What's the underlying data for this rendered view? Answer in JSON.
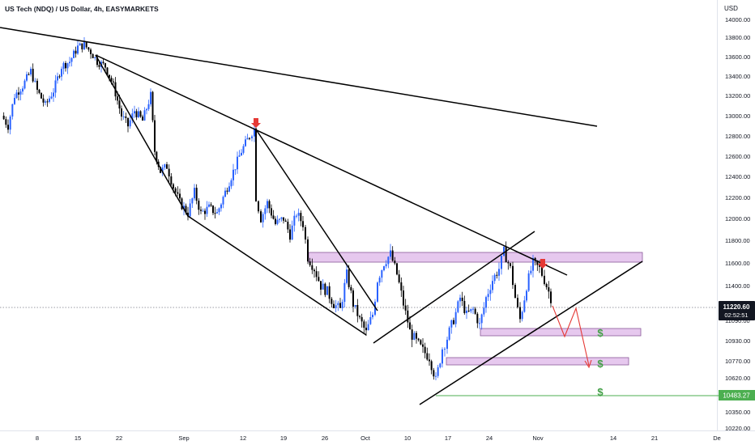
{
  "header": {
    "title": "US Tech (NDQ) / US Dollar, 4h, EASYMARKETS"
  },
  "price_axis": {
    "currency": "USD",
    "current_price": "11220.60",
    "countdown": "02:52:51",
    "support_level": "10483.27"
  },
  "colors": {
    "up_candle": "#2962ff",
    "down_candle": "#000000",
    "zone_fill": "#e6c8ee",
    "zone_stroke": "#8a5a9a",
    "signal_arrow": "#e53935",
    "dollar": "#43a047",
    "support_line": "#4caf50",
    "trend_line": "#000000"
  },
  "chart_data": {
    "type": "candlestick",
    "title": "US Tech (NDQ) / US Dollar, 4h, EASYMARKETS",
    "ylabel": "USD",
    "ylim": [
      10220,
      14000
    ],
    "x_ticks": [
      "8",
      "15",
      "22",
      "Sep",
      "12",
      "19",
      "26",
      "Oct",
      "10",
      "17",
      "24",
      "Nov",
      "14",
      "21",
      "De"
    ],
    "y_ticks": [
      14000,
      13800,
      13600,
      13400,
      13200,
      13000,
      12800,
      12600,
      12400,
      12200,
      12000,
      11800,
      11600,
      11400,
      11090,
      10930,
      10770,
      10620,
      10483.27,
      10350,
      10220
    ],
    "y_tick_labels": [
      "14000.00",
      "13800.00",
      "13600.00",
      "13400.00",
      "13200.00",
      "13000.00",
      "12800.00",
      "12600.00",
      "12400.00",
      "12200.00",
      "12000.00",
      "11800.00",
      "11600.00",
      "11400.00",
      "11090.00",
      "10930.00",
      "10770.00",
      "10620.00",
      "10483.27",
      "10350.00",
      "10220.00"
    ],
    "current_price": 11220.6,
    "zones": [
      {
        "from": 11600,
        "to": 11700
      },
      {
        "from": 11000,
        "to": 11070
      },
      {
        "from": 10700,
        "to": 10765
      }
    ],
    "horizontal_levels": [
      {
        "value": 10483.27,
        "style": "solid",
        "color": "#4caf50"
      },
      {
        "value": 11220.6,
        "style": "dotted",
        "color": "#787b86"
      }
    ],
    "annotations": {
      "down_arrows": 2,
      "projection_arrows": 2,
      "dollar_signs": 3
    }
  }
}
